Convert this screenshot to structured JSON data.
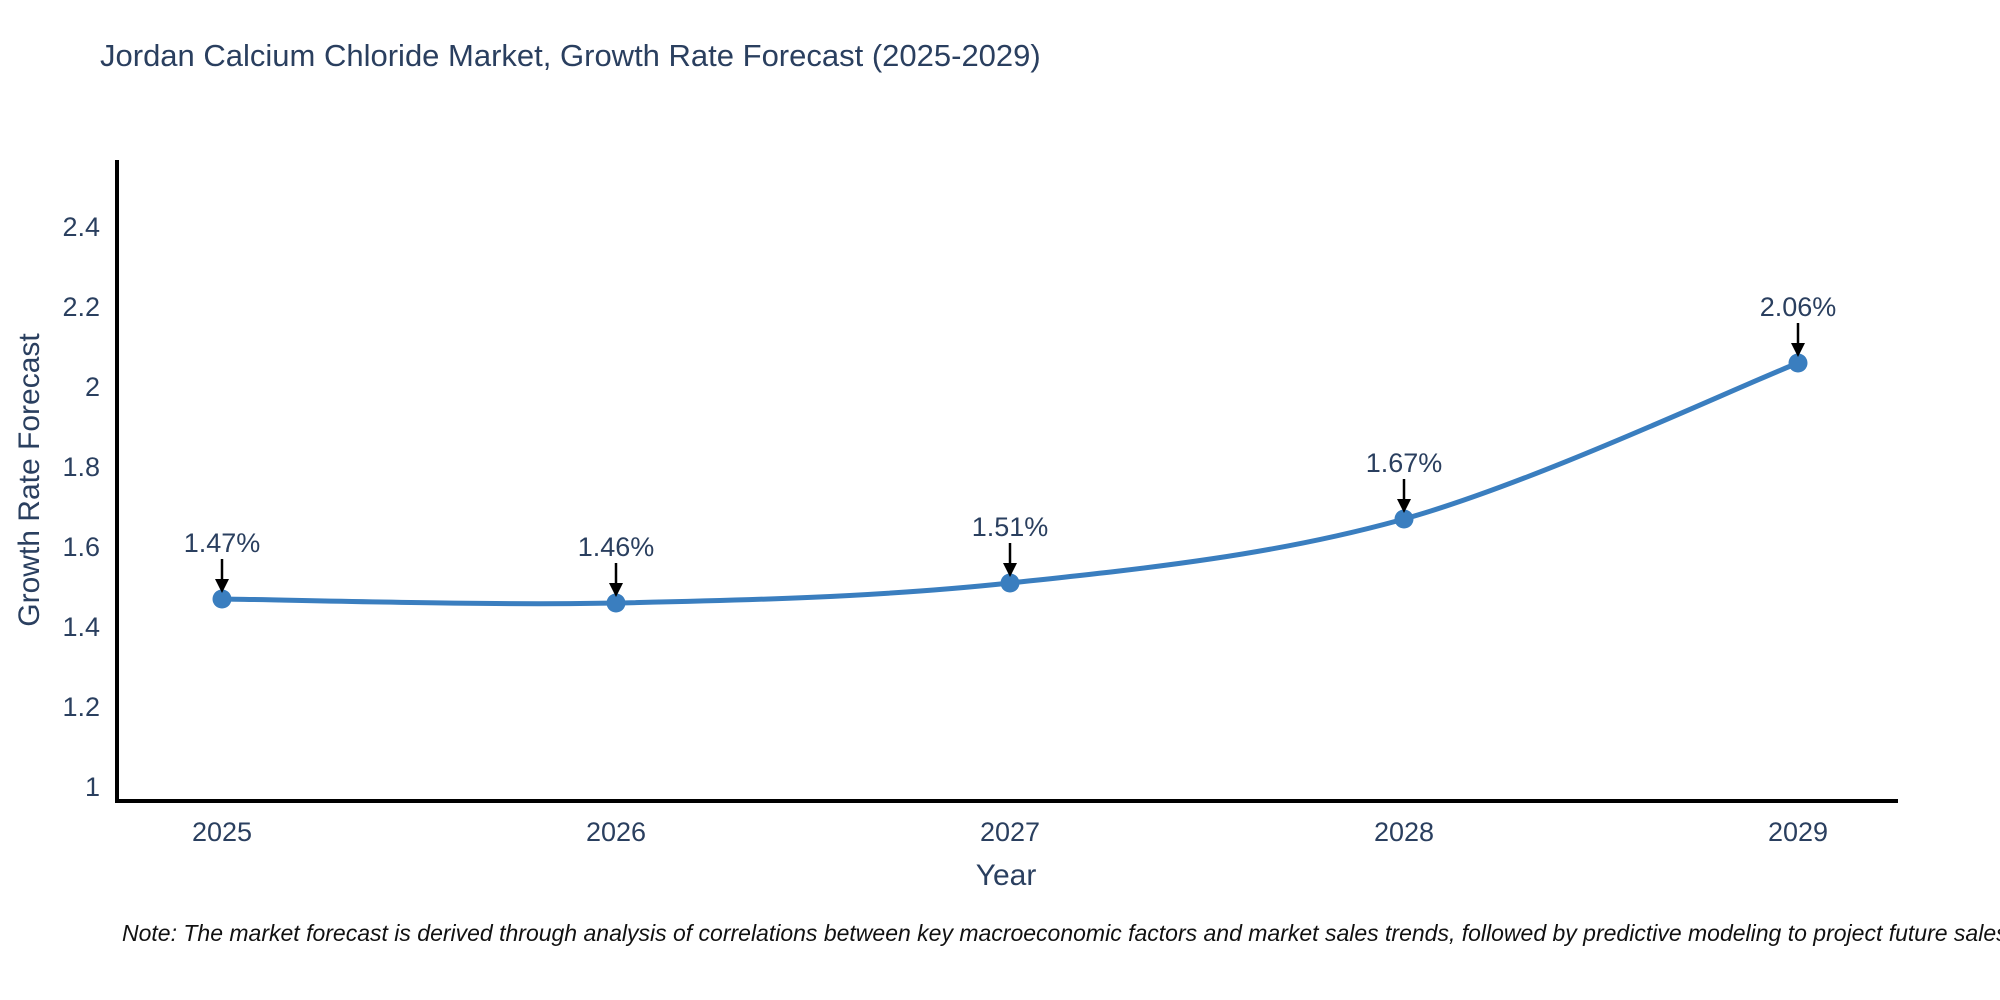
{
  "title": "Jordan Calcium Chloride Market, Growth Rate Forecast (2025-2029)",
  "note": "Note: The market forecast is derived through analysis of correlations between key macroeconomic factors and market sales trends, followed by predictive modeling to project future sales",
  "chart_data": {
    "type": "line",
    "title": "Jordan Calcium Chloride Market, Growth Rate Forecast (2025-2029)",
    "xlabel": "Year",
    "ylabel": "Growth Rate Forecast",
    "categories": [
      "2025",
      "2026",
      "2027",
      "2028",
      "2029"
    ],
    "series": [
      {
        "name": "Growth Rate Forecast",
        "values": [
          1.47,
          1.46,
          1.51,
          1.67,
          2.06
        ]
      }
    ],
    "point_labels": [
      "1.47%",
      "1.46%",
      "1.51%",
      "1.67%",
      "2.06%"
    ],
    "yticks": [
      "1",
      "1.2",
      "1.4",
      "1.6",
      "1.8",
      "2",
      "2.2",
      "2.4"
    ],
    "ytick_values": [
      1,
      1.2,
      1.4,
      1.6,
      1.8,
      2,
      2.2,
      2.4
    ],
    "ylim": [
      0.965,
      2.57
    ],
    "grid": false,
    "legend": "none",
    "line_shape": "spline",
    "colors": {
      "line": "#3a7ebf",
      "marker": "#3a7ebf",
      "axis": "#000000",
      "tick_text": "#2a3f5f",
      "annotation_text": "#2a3f5f",
      "annotation_arrow": "#000000",
      "title_text": "#2a3f5f",
      "note_text": "#111111",
      "background": "#ffffff"
    }
  }
}
